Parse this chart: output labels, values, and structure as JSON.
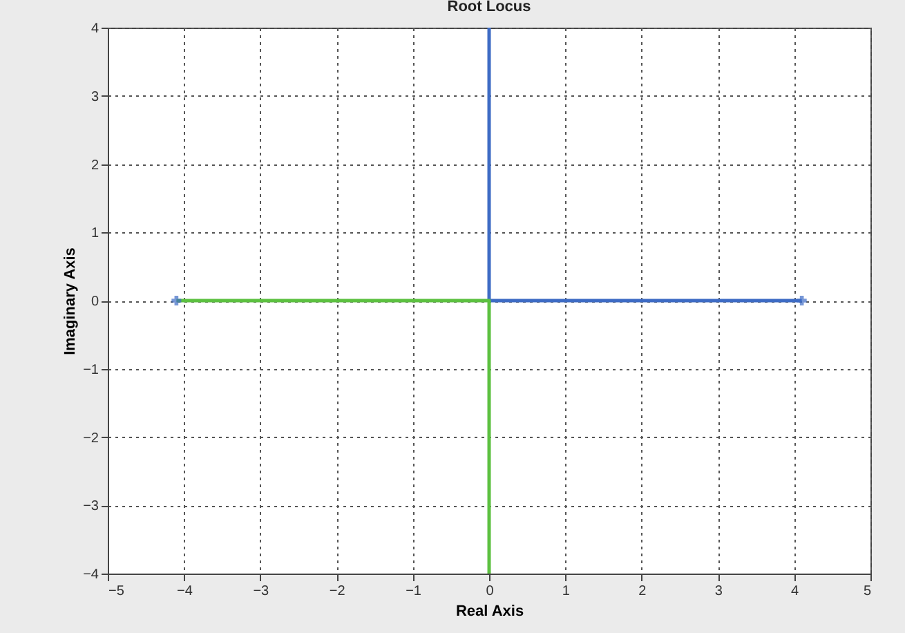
{
  "chart_data": {
    "type": "line",
    "title": "Root Locus",
    "xlabel": "Real Axis",
    "ylabel": "Imaginary Axis",
    "xlim": [
      -5,
      5
    ],
    "ylim": [
      -4,
      4
    ],
    "xticks": [
      -5,
      -4,
      -3,
      -2,
      -1,
      0,
      1,
      2,
      3,
      4,
      5
    ],
    "yticks": [
      -4,
      -3,
      -2,
      -1,
      0,
      1,
      2,
      3,
      4
    ],
    "grid": true,
    "series": [
      {
        "color": "#3d6bc4",
        "x": [
          4.1,
          0,
          0
        ],
        "values": [
          0,
          0,
          4
        ]
      },
      {
        "color": "#5cc040",
        "x": [
          -4.1,
          0,
          0
        ],
        "values": [
          0,
          0,
          -4
        ]
      },
      {
        "type": "scatter",
        "color": "#3d6bc4",
        "marker": "cross",
        "x": [
          -4.1,
          4.1
        ],
        "values": [
          0,
          0
        ]
      }
    ]
  }
}
